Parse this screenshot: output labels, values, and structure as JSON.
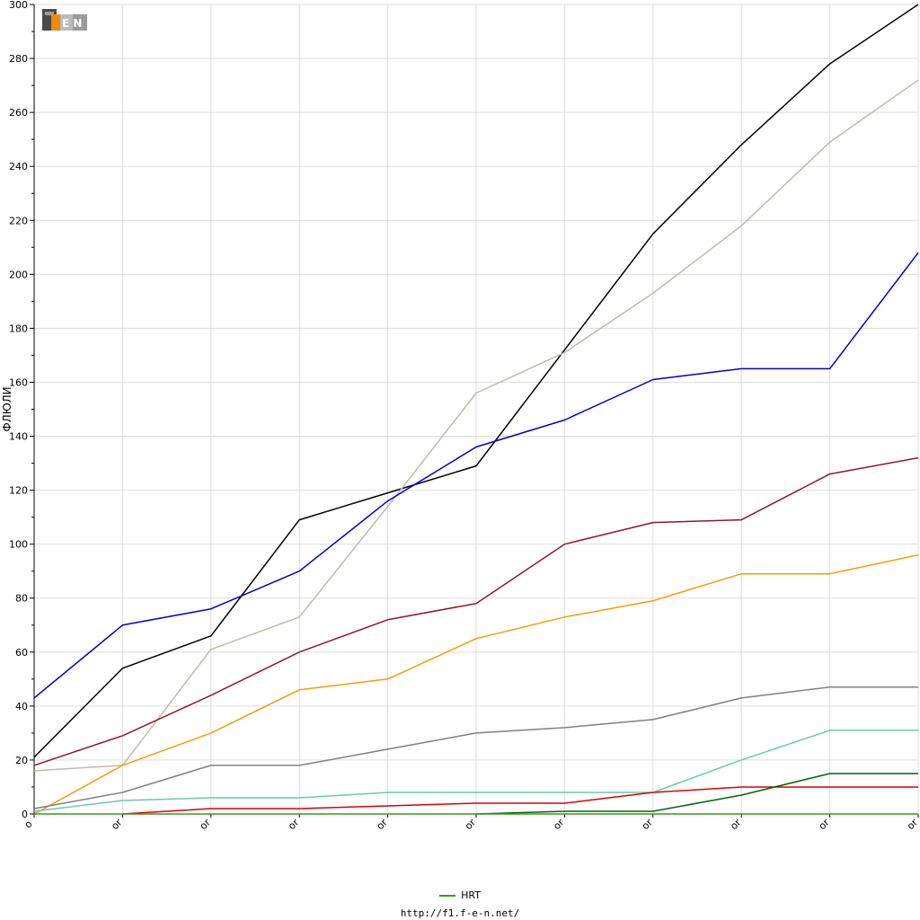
{
  "chart_data": {
    "type": "line",
    "ylabel": "ФЛЮЛИ",
    "ylim": [
      0,
      300
    ],
    "yticks": [
      0,
      20,
      40,
      60,
      80,
      100,
      120,
      140,
      160,
      180,
      200,
      220,
      240,
      260,
      280,
      300
    ],
    "x_tick_labels": [
      "o",
      "or",
      "or",
      "or",
      "or",
      "or",
      "or",
      "or",
      "or",
      "or",
      "or"
    ],
    "grid": true,
    "series": [
      {
        "color": "#000000",
        "values": [
          21,
          54,
          66,
          109,
          119,
          129,
          172,
          215,
          248,
          278,
          300
        ]
      },
      {
        "color": "#c4b8ac",
        "values": [
          16,
          18,
          61,
          73,
          114,
          156,
          171,
          193,
          218,
          249,
          272
        ]
      },
      {
        "color": "#0000cc",
        "values": [
          43,
          70,
          76,
          90,
          116,
          136,
          146,
          161,
          165,
          165,
          208
        ]
      },
      {
        "color": "#8b1a2a",
        "values": [
          18,
          29,
          44,
          60,
          72,
          78,
          100,
          108,
          109,
          126,
          132
        ]
      },
      {
        "color": "#f0a000",
        "values": [
          0,
          18,
          30,
          46,
          50,
          65,
          73,
          79,
          89,
          89,
          96
        ]
      },
      {
        "color": "#808080",
        "values": [
          2,
          8,
          18,
          18,
          24,
          30,
          32,
          35,
          43,
          47,
          47
        ]
      },
      {
        "color": "#66ccaa",
        "values": [
          1,
          5,
          6,
          6,
          8,
          8,
          8,
          8,
          20,
          31,
          31
        ]
      },
      {
        "color": "#dd0000",
        "values": [
          null,
          0,
          2,
          2,
          3,
          4,
          4,
          8,
          10,
          10,
          10
        ]
      },
      {
        "color": "#006600",
        "values": [
          null,
          null,
          null,
          null,
          null,
          0,
          1,
          1,
          7,
          15,
          15
        ]
      },
      {
        "color": "#3a9a1a",
        "values": [
          0,
          0,
          0,
          0,
          0,
          0,
          0,
          0,
          0,
          0,
          0
        ]
      }
    ],
    "legend": {
      "label": "HRT",
      "placement": "bottom-center"
    }
  },
  "logo_text": "F1EN",
  "footer_url": "http://f1.f-e-n.net/"
}
